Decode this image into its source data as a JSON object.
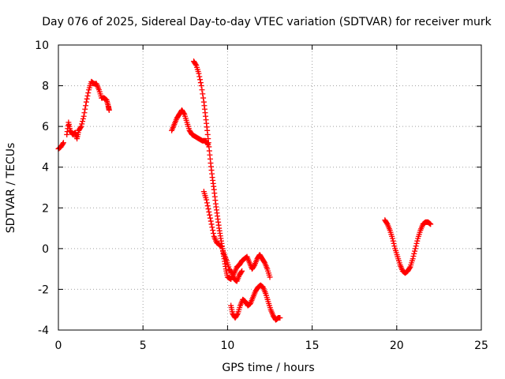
{
  "chart_data": {
    "type": "scatter",
    "title": "Day 076 of 2025, Sidereal Day-to-day VTEC variation (SDTVAR) for receiver murk",
    "xlabel": "GPS time / hours",
    "ylabel": "SDTVAR / TECUs",
    "xlim": [
      0,
      25
    ],
    "ylim": [
      -4,
      10
    ],
    "x_ticks": [
      "0",
      "5",
      "10",
      "15",
      "20",
      "25"
    ],
    "y_ticks": [
      "-4",
      "-2",
      "0",
      "2",
      "4",
      "6",
      "8",
      "10"
    ],
    "grid": true,
    "marker": "plus",
    "color": "#ff0000",
    "series": [
      {
        "segments": [
          [
            [
              0.0,
              4.9
            ],
            [
              0.15,
              5.0
            ],
            [
              0.3,
              5.2
            ]
          ],
          [
            [
              0.5,
              5.6
            ],
            [
              0.6,
              6.2
            ],
            [
              0.7,
              5.8
            ],
            [
              0.85,
              5.6
            ],
            [
              1.0,
              5.7
            ],
            [
              1.1,
              5.4
            ],
            [
              1.2,
              5.8
            ],
            [
              1.35,
              6.0
            ],
            [
              1.5,
              6.5
            ],
            [
              1.65,
              7.2
            ],
            [
              1.8,
              7.8
            ],
            [
              1.95,
              8.2
            ],
            [
              2.1,
              8.1
            ],
            [
              2.25,
              8.1
            ],
            [
              2.4,
              7.8
            ],
            [
              2.55,
              7.4
            ],
            [
              2.7,
              7.4
            ],
            [
              2.85,
              7.3
            ],
            [
              2.95,
              7.0
            ],
            [
              3.0,
              6.8
            ]
          ],
          [
            [
              6.7,
              5.8
            ],
            [
              6.85,
              6.1
            ],
            [
              7.0,
              6.4
            ],
            [
              7.15,
              6.6
            ],
            [
              7.3,
              6.8
            ],
            [
              7.45,
              6.6
            ],
            [
              7.6,
              6.2
            ],
            [
              7.75,
              5.8
            ],
            [
              7.9,
              5.6
            ],
            [
              8.1,
              5.5
            ],
            [
              8.3,
              5.4
            ],
            [
              8.5,
              5.3
            ],
            [
              8.7,
              5.3
            ],
            [
              8.85,
              5.1
            ]
          ],
          [
            [
              8.0,
              9.2
            ],
            [
              8.15,
              9.0
            ],
            [
              8.3,
              8.6
            ],
            [
              8.45,
              8.0
            ],
            [
              8.6,
              7.2
            ],
            [
              8.7,
              6.5
            ],
            [
              8.8,
              5.8
            ],
            [
              8.9,
              5.0
            ],
            [
              9.0,
              4.2
            ],
            [
              9.1,
              3.5
            ],
            [
              9.2,
              2.9
            ],
            [
              9.3,
              2.2
            ],
            [
              9.4,
              1.6
            ],
            [
              9.5,
              1.0
            ],
            [
              9.6,
              0.5
            ],
            [
              9.7,
              0.0
            ],
            [
              9.8,
              -0.5
            ],
            [
              9.9,
              -1.0
            ],
            [
              10.0,
              -1.4
            ],
            [
              10.2,
              -1.5
            ],
            [
              10.4,
              -1.2
            ],
            [
              10.55,
              -0.9
            ],
            [
              10.7,
              -0.8
            ],
            [
              10.85,
              -0.6
            ],
            [
              11.0,
              -0.5
            ],
            [
              11.15,
              -0.4
            ],
            [
              11.3,
              -0.7
            ],
            [
              11.45,
              -1.0
            ],
            [
              11.6,
              -0.8
            ],
            [
              11.75,
              -0.5
            ],
            [
              11.9,
              -0.3
            ],
            [
              12.05,
              -0.5
            ],
            [
              12.2,
              -0.7
            ],
            [
              12.35,
              -1.0
            ],
            [
              12.5,
              -1.4
            ]
          ],
          [
            [
              8.6,
              2.8
            ],
            [
              8.75,
              2.4
            ],
            [
              8.9,
              1.8
            ],
            [
              9.05,
              1.2
            ],
            [
              9.2,
              0.6
            ],
            [
              9.35,
              0.3
            ],
            [
              9.5,
              0.2
            ],
            [
              9.65,
              0.1
            ],
            [
              9.8,
              -0.3
            ],
            [
              9.95,
              -0.6
            ],
            [
              10.1,
              -1.0
            ],
            [
              10.25,
              -1.2
            ],
            [
              10.4,
              -1.5
            ],
            [
              10.55,
              -1.6
            ],
            [
              10.7,
              -1.3
            ],
            [
              10.85,
              -1.1
            ]
          ],
          [
            [
              10.2,
              -2.8
            ],
            [
              10.3,
              -3.2
            ],
            [
              10.45,
              -3.4
            ],
            [
              10.6,
              -3.2
            ],
            [
              10.75,
              -2.8
            ],
            [
              10.9,
              -2.5
            ],
            [
              11.05,
              -2.6
            ],
            [
              11.2,
              -2.8
            ],
            [
              11.35,
              -2.7
            ],
            [
              11.5,
              -2.4
            ],
            [
              11.65,
              -2.1
            ],
            [
              11.8,
              -1.9
            ],
            [
              11.95,
              -1.8
            ],
            [
              12.1,
              -1.9
            ],
            [
              12.25,
              -2.2
            ],
            [
              12.4,
              -2.6
            ],
            [
              12.55,
              -3.0
            ],
            [
              12.7,
              -3.3
            ],
            [
              12.85,
              -3.5
            ],
            [
              13.0,
              -3.4
            ],
            [
              13.1,
              -3.4
            ]
          ],
          [
            [
              19.3,
              1.4
            ],
            [
              19.45,
              1.2
            ],
            [
              19.6,
              0.9
            ],
            [
              19.75,
              0.5
            ],
            [
              19.9,
              0.0
            ],
            [
              20.05,
              -0.4
            ],
            [
              20.2,
              -0.8
            ],
            [
              20.35,
              -1.1
            ],
            [
              20.5,
              -1.2
            ],
            [
              20.65,
              -1.1
            ],
            [
              20.8,
              -0.9
            ],
            [
              20.95,
              -0.5
            ],
            [
              21.1,
              0.0
            ],
            [
              21.25,
              0.5
            ],
            [
              21.4,
              0.9
            ],
            [
              21.55,
              1.2
            ],
            [
              21.7,
              1.3
            ],
            [
              21.85,
              1.3
            ],
            [
              22.0,
              1.2
            ]
          ]
        ]
      }
    ]
  }
}
